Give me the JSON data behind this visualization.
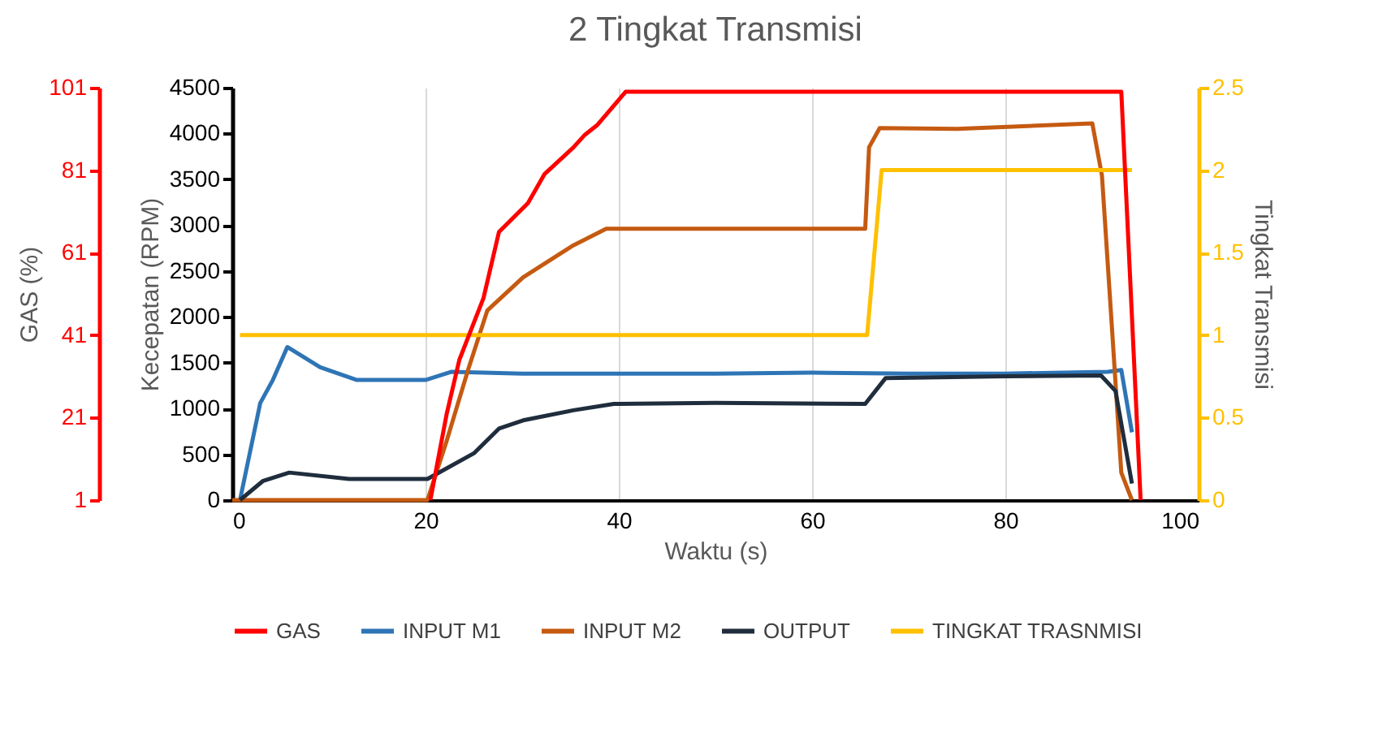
{
  "chart_data": {
    "type": "line",
    "title": "2 Tingkat Transmisi",
    "xlabel": "Waktu (s)",
    "ylabel": "Kecepatan (RPM)",
    "y2label": "Tingkat Transmisi",
    "y3label": "GAS (%)",
    "xlim": [
      0,
      100
    ],
    "xticks": [
      0,
      20,
      40,
      60,
      80,
      100
    ],
    "ylim": [
      0,
      4500
    ],
    "yticks": [
      0,
      500,
      1000,
      1500,
      2000,
      2500,
      3000,
      3500,
      4000,
      4500
    ],
    "y2lim": [
      0,
      2.5
    ],
    "y2ticks": [
      0,
      0.5,
      1,
      1.5,
      2,
      2.5
    ],
    "y3lim": [
      1,
      101
    ],
    "y3ticks": [
      1,
      21,
      41,
      61,
      81,
      101
    ],
    "grid": "x",
    "legend": "bottom",
    "line_style": "solid",
    "series": [
      {
        "name": "GAS",
        "color": "#ff0000",
        "axis": "y3",
        "x": [
          20.5,
          22.2,
          23.5,
          26,
          27.6,
          30.6,
          32.3,
          35.3,
          36.5,
          37.8,
          40.7,
          45,
          50,
          55,
          60,
          65,
          70,
          75,
          80,
          85,
          92,
          94
        ],
        "values": [
          1,
          22,
          35,
          50,
          66,
          73,
          80,
          86.5,
          89.6,
          92,
          100,
          100,
          100,
          100,
          100,
          100,
          100,
          100,
          100,
          100,
          100,
          1
        ]
      },
      {
        "name": "INPUT M1",
        "color": "#2e75b6",
        "x": [
          0.8,
          2.9,
          4.2,
          5.7,
          9.1,
          12.9,
          20,
          22.7,
          30,
          40,
          50,
          60,
          70,
          80,
          90.6,
          92,
          93.1
        ],
        "values": [
          0,
          1060,
          1310,
          1670,
          1450,
          1310,
          1310,
          1400,
          1380,
          1380,
          1380,
          1390,
          1380,
          1380,
          1400,
          1420,
          740
        ]
      },
      {
        "name": "INPUT M2",
        "color": "#c55a11",
        "x": [
          0,
          20.2,
          22.2,
          24.4,
          26.4,
          30.1,
          35.3,
          38.7,
          50,
          64.7,
          65.5,
          65.9,
          67,
          75,
          89,
          90,
          91.1,
          92,
          93.1
        ],
        "values": [
          0,
          0,
          650,
          1420,
          2070,
          2430,
          2780,
          2960,
          2960,
          2960,
          2960,
          3850,
          4060,
          4050,
          4110,
          3540,
          1770,
          300,
          0
        ]
      },
      {
        "name": "OUTPUT",
        "color": "#1f2d3d",
        "x": [
          0.8,
          3.2,
          5.9,
          12.1,
          20.2,
          25,
          27.6,
          30.1,
          35.3,
          39.5,
          50,
          65.5,
          67.6,
          80,
          89.9,
          91.4,
          93.1
        ],
        "values": [
          0,
          210,
          300,
          230,
          230,
          510,
          780,
          870,
          980,
          1050,
          1060,
          1050,
          1330,
          1350,
          1360,
          1190,
          180
        ]
      },
      {
        "name": "TINGKAT TRASNMISI",
        "color": "#ffc000",
        "axis": "y2",
        "x": [
          0.8,
          65.7,
          67.2,
          93.1
        ],
        "values": [
          1,
          1,
          2,
          2
        ]
      }
    ]
  }
}
